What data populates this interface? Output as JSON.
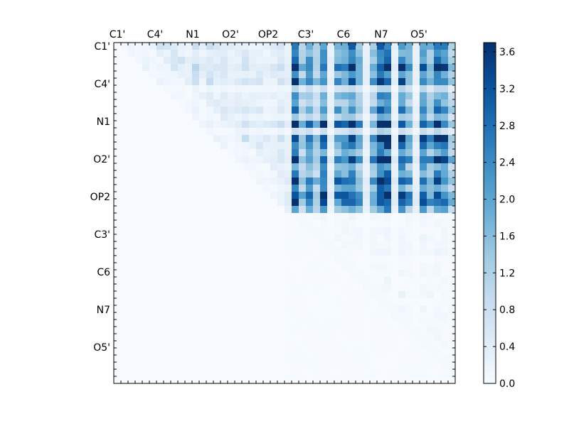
{
  "chart_data": {
    "type": "heatmap",
    "title": "",
    "xlabel": "",
    "ylabel": "",
    "grid": false,
    "n": 48,
    "x_tick_labels": [
      "C1'",
      "C4'",
      "N1",
      "O2'",
      "OP2",
      "C3'",
      "C6",
      "N7",
      "O5'"
    ],
    "y_tick_labels": [
      "C1'",
      "C4'",
      "N1",
      "O2'",
      "OP2",
      "C3'",
      "C6",
      "N7",
      "O5'"
    ],
    "tick_step": 5.3,
    "x_tick_position": "top",
    "colormap": "Blues",
    "colorbar": {
      "min": 0.0,
      "max": 3.7,
      "ticks": [
        "0.0",
        "0.4",
        "0.8",
        "1.2",
        "1.6",
        "2.0",
        "2.4",
        "2.8",
        "3.2",
        "3.6"
      ]
    },
    "description_values": {
      "upper_left_block_max": 1.3,
      "upper_right_block_range": [
        0.4,
        3.7
      ],
      "lower_right_block_max": 0.5,
      "lower_left_block": 0.0
    }
  }
}
